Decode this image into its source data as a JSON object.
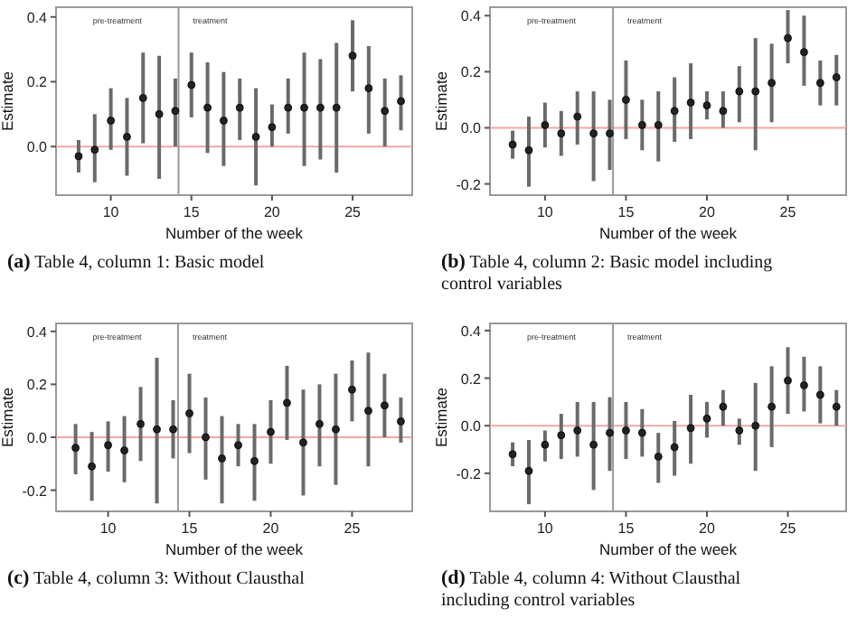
{
  "chart_data": [
    {
      "type": "scatter",
      "title": "(a) Table 4, column 1: Basic model",
      "xlabel": "Number of the week",
      "ylabel": "Estimate",
      "marker": "circle",
      "x": [
        8,
        9,
        10,
        11,
        12,
        13,
        14,
        15,
        16,
        17,
        18,
        19,
        20,
        21,
        22,
        23,
        24,
        25,
        26,
        27,
        28
      ],
      "xlim": [
        6.6,
        28.7
      ],
      "ylim": [
        -0.15,
        0.43
      ],
      "xticks": [
        10,
        15,
        20,
        25
      ],
      "yticks": [
        {
          "value": 0,
          "label": "0.0"
        },
        {
          "value": 0.2,
          "label": "0.2"
        },
        {
          "value": 0.4,
          "label": "0.4"
        }
      ],
      "series": [
        {
          "color": "#222222",
          "values": [
            -0.03,
            -0.01,
            0.08,
            0.03,
            0.15,
            0.1,
            0.11,
            0.19,
            0.12,
            0.08,
            0.12,
            0.03,
            0.06,
            0.12,
            0.12,
            0.12,
            0.12,
            0.28,
            0.18,
            0.11,
            0.14
          ],
          "errors": [
            [
              -0.08,
              0.02
            ],
            [
              -0.11,
              0.1
            ],
            [
              -0.01,
              0.18
            ],
            [
              -0.09,
              0.15
            ],
            [
              0.01,
              0.29
            ],
            [
              -0.1,
              0.28
            ],
            [
              0.0,
              0.21
            ],
            [
              0.09,
              0.29
            ],
            [
              -0.02,
              0.26
            ],
            [
              -0.06,
              0.23
            ],
            [
              0.02,
              0.21
            ],
            [
              -0.12,
              0.18
            ],
            [
              0.0,
              0.13
            ],
            [
              0.04,
              0.21
            ],
            [
              -0.06,
              0.29
            ],
            [
              -0.04,
              0.27
            ],
            [
              -0.08,
              0.32
            ],
            [
              0.17,
              0.39
            ],
            [
              0.04,
              0.31
            ],
            [
              0.0,
              0.21
            ],
            [
              0.05,
              0.22
            ]
          ]
        }
      ],
      "ref_lines": [
        {
          "axis": "y",
          "value": 0,
          "color": "#f4a6a6"
        },
        {
          "axis": "x",
          "value": 14.2,
          "color": "#999999"
        }
      ],
      "annotations": [
        "pre-treatment",
        "treatment"
      ]
    },
    {
      "type": "scatter",
      "title": "(b) Table 4, column 2: Basic model including control variables",
      "xlabel": "Number of the week",
      "ylabel": "Estimate",
      "marker": "circle",
      "x": [
        8,
        9,
        10,
        11,
        12,
        13,
        14,
        15,
        16,
        17,
        18,
        19,
        20,
        21,
        22,
        23,
        24,
        25,
        26,
        27,
        28
      ],
      "xlim": [
        6.6,
        28.6
      ],
      "ylim": [
        -0.24,
        0.43
      ],
      "xticks": [
        10,
        15,
        20,
        25
      ],
      "yticks": [
        {
          "value": -0.2,
          "label": "-0.2"
        },
        {
          "value": 0,
          "label": "0.0"
        },
        {
          "value": 0.2,
          "label": "0.2"
        },
        {
          "value": 0.4,
          "label": "0.4"
        }
      ],
      "series": [
        {
          "color": "#222222",
          "values": [
            -0.06,
            -0.08,
            0.01,
            -0.02,
            0.04,
            -0.02,
            -0.02,
            0.1,
            0.01,
            0.01,
            0.06,
            0.09,
            0.08,
            0.06,
            0.13,
            0.13,
            0.16,
            0.32,
            0.27,
            0.16,
            0.18
          ],
          "errors": [
            [
              -0.11,
              -0.01
            ],
            [
              -0.21,
              0.04
            ],
            [
              -0.07,
              0.09
            ],
            [
              -0.1,
              0.06
            ],
            [
              -0.06,
              0.13
            ],
            [
              -0.19,
              0.13
            ],
            [
              -0.15,
              0.1
            ],
            [
              -0.04,
              0.24
            ],
            [
              -0.08,
              0.1
            ],
            [
              -0.12,
              0.13
            ],
            [
              -0.05,
              0.18
            ],
            [
              -0.04,
              0.23
            ],
            [
              0.03,
              0.13
            ],
            [
              0.0,
              0.13
            ],
            [
              0.02,
              0.22
            ],
            [
              -0.08,
              0.32
            ],
            [
              0.02,
              0.3
            ],
            [
              0.23,
              0.42
            ],
            [
              0.15,
              0.4
            ],
            [
              0.08,
              0.24
            ],
            [
              0.08,
              0.26
            ]
          ]
        }
      ],
      "ref_lines": [
        {
          "axis": "y",
          "value": 0,
          "color": "#f4a6a6"
        },
        {
          "axis": "x",
          "value": 14.2,
          "color": "#999999"
        }
      ],
      "annotations": [
        "pre-treatment",
        "treatment"
      ]
    },
    {
      "type": "scatter",
      "title": "(c) Table 4, column 3: Without Clausthal",
      "xlabel": "Number of the week",
      "ylabel": "Estimate",
      "marker": "circle",
      "x": [
        8,
        9,
        10,
        11,
        12,
        13,
        14,
        15,
        16,
        17,
        18,
        19,
        20,
        21,
        22,
        23,
        24,
        25,
        26,
        27,
        28
      ],
      "xlim": [
        6.8,
        28.7
      ],
      "ylim": [
        -0.28,
        0.43
      ],
      "xticks": [
        10,
        15,
        20,
        25
      ],
      "yticks": [
        {
          "value": -0.2,
          "label": "-0.2"
        },
        {
          "value": 0,
          "label": "0.0"
        },
        {
          "value": 0.2,
          "label": "0.2"
        },
        {
          "value": 0.4,
          "label": "0.4"
        }
      ],
      "series": [
        {
          "color": "#222222",
          "values": [
            -0.04,
            -0.11,
            -0.03,
            -0.05,
            0.05,
            0.03,
            0.03,
            0.09,
            0.0,
            -0.08,
            -0.03,
            -0.09,
            0.02,
            0.13,
            -0.02,
            0.05,
            0.03,
            0.18,
            0.1,
            0.12,
            0.06
          ],
          "errors": [
            [
              -0.14,
              0.05
            ],
            [
              -0.24,
              0.02
            ],
            [
              -0.13,
              0.06
            ],
            [
              -0.17,
              0.08
            ],
            [
              -0.09,
              0.19
            ],
            [
              -0.25,
              0.3
            ],
            [
              -0.08,
              0.14
            ],
            [
              -0.06,
              0.24
            ],
            [
              -0.16,
              0.15
            ],
            [
              -0.25,
              0.08
            ],
            [
              -0.11,
              0.05
            ],
            [
              -0.24,
              0.05
            ],
            [
              -0.1,
              0.14
            ],
            [
              -0.01,
              0.27
            ],
            [
              -0.22,
              0.18
            ],
            [
              -0.11,
              0.2
            ],
            [
              -0.18,
              0.24
            ],
            [
              0.06,
              0.29
            ],
            [
              -0.11,
              0.32
            ],
            [
              0.0,
              0.24
            ],
            [
              -0.02,
              0.15
            ]
          ]
        }
      ],
      "ref_lines": [
        {
          "axis": "y",
          "value": 0,
          "color": "#f4a6a6"
        },
        {
          "axis": "x",
          "value": 14.3,
          "color": "#999999"
        }
      ],
      "annotations": [
        "pre-treatment",
        "treatment"
      ]
    },
    {
      "type": "scatter",
      "title": "(d) Table 4, column 4: Without Clausthal including control variables",
      "xlabel": "Number of the week",
      "ylabel": "Estimate",
      "marker": "circle",
      "x": [
        8,
        9,
        10,
        11,
        12,
        13,
        14,
        15,
        16,
        17,
        18,
        19,
        20,
        21,
        22,
        23,
        24,
        25,
        26,
        27,
        28
      ],
      "xlim": [
        6.6,
        28.6
      ],
      "ylim": [
        -0.36,
        0.43
      ],
      "xticks": [
        10,
        15,
        20,
        25
      ],
      "yticks": [
        {
          "value": -0.2,
          "label": "-0.2"
        },
        {
          "value": 0,
          "label": "0.0"
        },
        {
          "value": 0.2,
          "label": "0.2"
        },
        {
          "value": 0.4,
          "label": "0.4"
        }
      ],
      "series": [
        {
          "color": "#222222",
          "values": [
            -0.12,
            -0.19,
            -0.08,
            -0.04,
            -0.02,
            -0.08,
            -0.03,
            -0.02,
            -0.03,
            -0.13,
            -0.09,
            -0.01,
            0.03,
            0.08,
            -0.02,
            0.0,
            0.08,
            0.19,
            0.17,
            0.13,
            0.08
          ],
          "errors": [
            [
              -0.17,
              -0.07
            ],
            [
              -0.33,
              -0.06
            ],
            [
              -0.15,
              -0.02
            ],
            [
              -0.14,
              0.05
            ],
            [
              -0.13,
              0.1
            ],
            [
              -0.27,
              0.1
            ],
            [
              -0.19,
              0.12
            ],
            [
              -0.14,
              0.1
            ],
            [
              -0.13,
              0.07
            ],
            [
              -0.24,
              -0.03
            ],
            [
              -0.21,
              0.02
            ],
            [
              -0.16,
              0.13
            ],
            [
              -0.05,
              0.1
            ],
            [
              0.0,
              0.15
            ],
            [
              -0.08,
              0.03
            ],
            [
              -0.19,
              0.18
            ],
            [
              -0.09,
              0.25
            ],
            [
              0.05,
              0.33
            ],
            [
              0.06,
              0.29
            ],
            [
              0.01,
              0.25
            ],
            [
              0.0,
              0.15
            ]
          ]
        }
      ],
      "ref_lines": [
        {
          "axis": "y",
          "value": 0,
          "color": "#f4a6a6"
        },
        {
          "axis": "x",
          "value": 14.2,
          "color": "#999999"
        }
      ],
      "annotations": [
        "pre-treatment",
        "treatment"
      ]
    }
  ]
}
